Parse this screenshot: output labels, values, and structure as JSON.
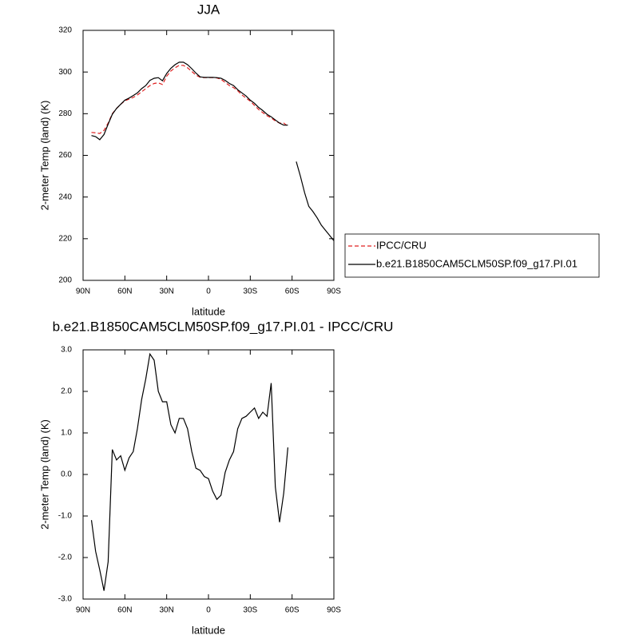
{
  "chart_data": [
    {
      "type": "line",
      "title": "JJA",
      "xlabel": "latitude",
      "ylabel": "2-meter Temp (land) (K)",
      "x": [
        84,
        81,
        78,
        75,
        72,
        69,
        66,
        63,
        60,
        57,
        54,
        51,
        48,
        45,
        42,
        39,
        36,
        33,
        30,
        27,
        24,
        21,
        18,
        15,
        12,
        9,
        6,
        3,
        0,
        -3,
        -6,
        -9,
        -12,
        -15,
        -18,
        -21,
        -24,
        -27,
        -30,
        -33,
        -36,
        -39,
        -42,
        -45,
        -48,
        -51,
        -54,
        -57,
        -60,
        -63,
        -66,
        -69,
        -72,
        -75,
        -78,
        -81,
        -84,
        -87,
        -90
      ],
      "series": [
        {
          "name": "IPCC/CRU",
          "color": "#e02020",
          "dash": true,
          "values": [
            271,
            270.8,
            270.5,
            272,
            275.5,
            280,
            282.5,
            284.5,
            286.2,
            287,
            287.8,
            289,
            290.5,
            292,
            293.5,
            294.5,
            294.8,
            294,
            298,
            300.5,
            302,
            303.2,
            303.2,
            302,
            300.3,
            298.5,
            297.5,
            297.3,
            297.3,
            297.3,
            297.2,
            296.5,
            295,
            293.5,
            292.5,
            291,
            289,
            287.5,
            286,
            284,
            282,
            280.5,
            279,
            278,
            276.5,
            275.5,
            275.5,
            274,
            null,
            null,
            null,
            null,
            null,
            null,
            null,
            null,
            null,
            null,
            null
          ]
        },
        {
          "name": "b.e21.B1850CAM5CLM50SP.f09_g17.PI.01",
          "color": "#000000",
          "dash": false,
          "values": [
            269.5,
            269,
            267.5,
            270,
            275,
            279.7,
            282.5,
            284.5,
            286.5,
            287.5,
            288.7,
            290,
            292,
            293.5,
            296,
            297,
            297.3,
            295.8,
            299.3,
            301.8,
            303.5,
            304.7,
            304.7,
            303.5,
            301.6,
            299.5,
            297.7,
            297.4,
            297.4,
            297.4,
            297.3,
            297,
            296,
            294.5,
            293.5,
            291.5,
            290,
            288.5,
            286.5,
            285,
            283,
            281.5,
            279.7,
            278.5,
            277,
            275.5,
            274.5,
            274.5,
            null,
            257,
            250,
            242,
            235.5,
            233,
            230,
            226.5,
            224,
            221.5,
            219
          ]
        }
      ],
      "xlim": [
        90,
        -90
      ],
      "xticks": [
        {
          "value": 90,
          "label": "90N"
        },
        {
          "value": 60,
          "label": "60N"
        },
        {
          "value": 30,
          "label": "30N"
        },
        0,
        {
          "value": -30,
          "label": "30S"
        },
        {
          "value": -60,
          "label": "60S"
        },
        {
          "value": -90,
          "label": "90S"
        }
      ],
      "ylim": [
        200,
        320
      ],
      "yticks": [
        200,
        220,
        240,
        260,
        280,
        300,
        320
      ],
      "legend": "right"
    },
    {
      "type": "line",
      "title": "b.e21.B1850CAM5CLM50SP.f09_g17.PI.01 - IPCC/CRU",
      "xlabel": "latitude",
      "ylabel": "2-meter Temp (land) (K)",
      "x": [
        84,
        81,
        78,
        75,
        72,
        69,
        66,
        63,
        60,
        57,
        54,
        51,
        48,
        45,
        42,
        39,
        36,
        33,
        30,
        27,
        24,
        21,
        18,
        15,
        12,
        9,
        6,
        3,
        0,
        -3,
        -6,
        -9,
        -12,
        -15,
        -18,
        -21,
        -24,
        -27,
        -30,
        -33,
        -36,
        -39,
        -42,
        -45,
        -48,
        -51,
        -54,
        -57
      ],
      "series": [
        {
          "color": "#000000",
          "dash": false,
          "values": [
            -1.1,
            -1.85,
            -2.3,
            -2.8,
            -2.1,
            0.6,
            0.35,
            0.45,
            0.1,
            0.4,
            0.55,
            1.1,
            1.8,
            2.3,
            2.9,
            2.75,
            2.0,
            1.75,
            1.75,
            1.2,
            1.0,
            1.35,
            1.35,
            1.1,
            0.55,
            0.15,
            0.1,
            -0.05,
            -0.1,
            -0.4,
            -0.6,
            -0.5,
            0.05,
            0.35,
            0.55,
            1.1,
            1.35,
            1.4,
            1.5,
            1.6,
            1.35,
            1.5,
            1.4,
            2.2,
            -0.3,
            -1.15,
            -0.45,
            0.65
          ]
        }
      ],
      "xlim": [
        90,
        -90
      ],
      "xticks": [
        {
          "value": 90,
          "label": "90N"
        },
        {
          "value": 60,
          "label": "60N"
        },
        {
          "value": 30,
          "label": "30N"
        },
        0,
        {
          "value": -30,
          "label": "30S"
        },
        {
          "value": -60,
          "label": "60S"
        },
        {
          "value": -90,
          "label": "90S"
        }
      ],
      "ylim": [
        -3,
        3
      ],
      "yticks": [
        {
          "value": -3,
          "label": "-3.0"
        },
        {
          "value": -2,
          "label": "-2.0"
        },
        {
          "value": -1,
          "label": "-1.0"
        },
        {
          "value": 0,
          "label": "0.0"
        },
        {
          "value": 1,
          "label": "1.0"
        },
        {
          "value": 2,
          "label": "2.0"
        },
        {
          "value": 3,
          "label": "3.0"
        }
      ]
    }
  ]
}
